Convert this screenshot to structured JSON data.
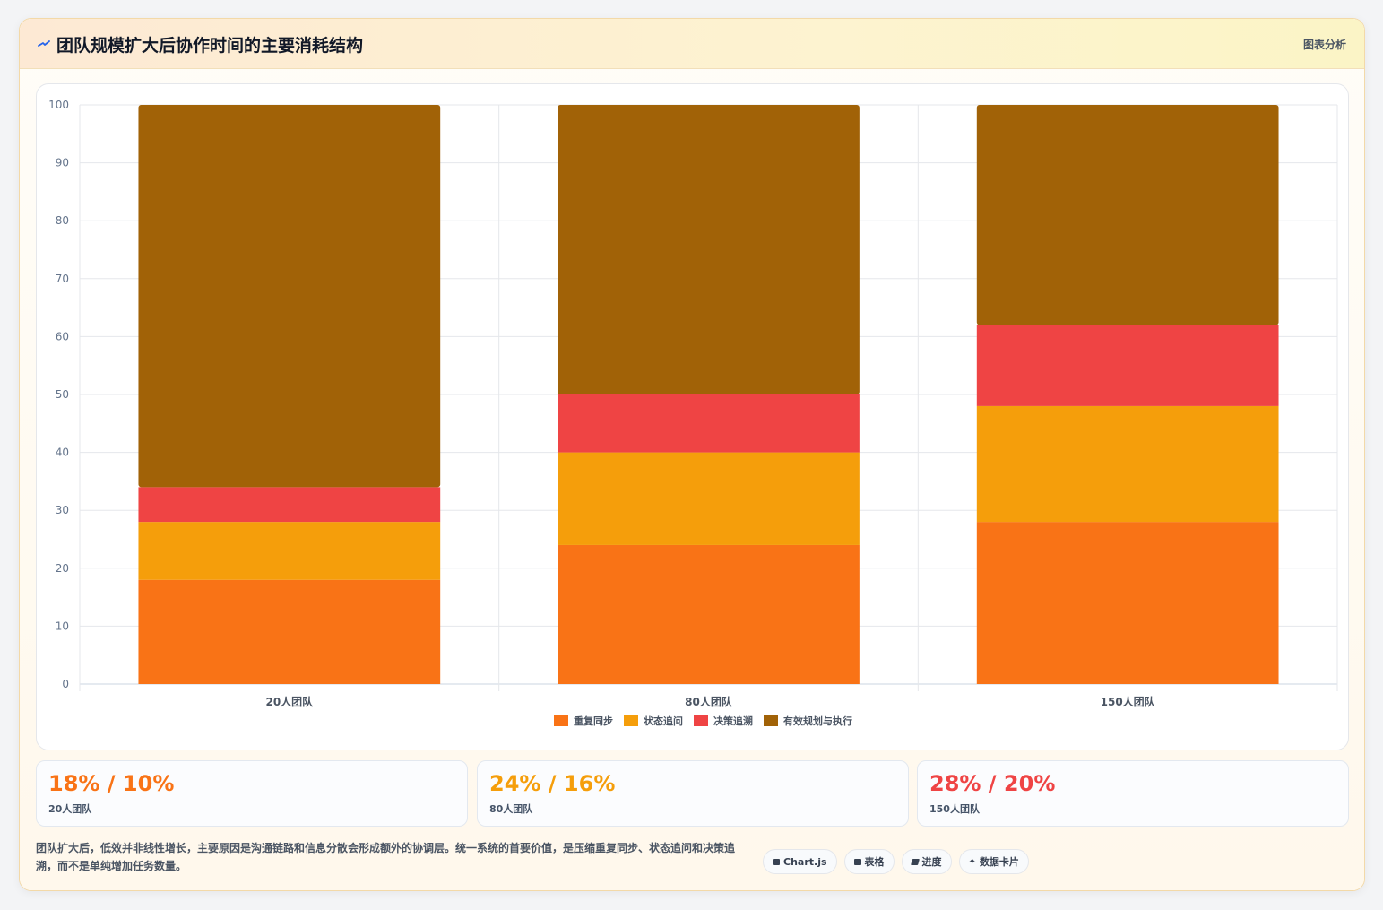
{
  "header": {
    "title": "团队规模扩大后协作时间的主要消耗结构",
    "tag": "图表分析"
  },
  "colors": {
    "repeat_sync": "#f97316",
    "status_chase": "#f59e0b",
    "decision_trace": "#ef4444",
    "effective_work": "#a16207"
  },
  "chart_data": {
    "type": "bar",
    "stacked": true,
    "categories": [
      "20人团队",
      "80人团队",
      "150人团队"
    ],
    "series": [
      {
        "name": "重复同步",
        "values": [
          18,
          24,
          28
        ],
        "color": "#f97316"
      },
      {
        "name": "状态追问",
        "values": [
          10,
          16,
          20
        ],
        "color": "#f59e0b"
      },
      {
        "name": "决策追溯",
        "values": [
          6,
          10,
          14
        ],
        "color": "#ef4444"
      },
      {
        "name": "有效规划与执行",
        "values": [
          66,
          50,
          38
        ],
        "color": "#a16207"
      }
    ],
    "ylim": [
      0,
      100
    ],
    "yticks": [
      0,
      10,
      20,
      30,
      40,
      50,
      60,
      70,
      80,
      90,
      100
    ],
    "grid": true,
    "legend": "bottom"
  },
  "stats": [
    {
      "value": "18% / 10%",
      "label": "20人团队",
      "color": "#f97316"
    },
    {
      "value": "24% / 16%",
      "label": "80人团队",
      "color": "#f59e0b"
    },
    {
      "value": "28% / 20%",
      "label": "150人团队",
      "color": "#ef4444"
    }
  ],
  "footer": {
    "text": "团队扩大后，低效并非线性增长，主要原因是沟通链路和信息分散会形成额外的协调层。统一系统的首要价值，是压缩重复同步、状态追问和决策追溯，而不是单纯增加任务数量。",
    "pills": [
      {
        "label": "Chart.js",
        "icon": "chart-icon"
      },
      {
        "label": "表格",
        "icon": "table-icon"
      },
      {
        "label": "进度",
        "icon": "progress-icon"
      },
      {
        "label": "数据卡片",
        "icon": "sparkle-icon"
      }
    ]
  }
}
